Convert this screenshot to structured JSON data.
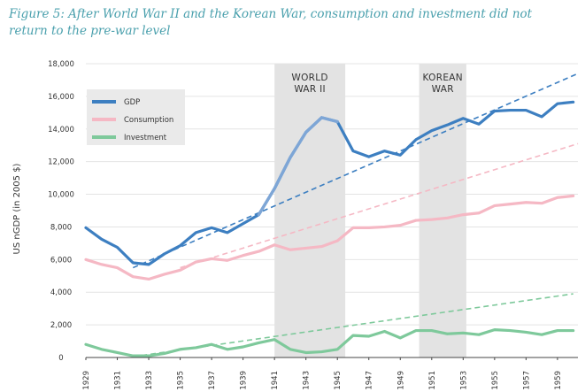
{
  "title": "Figure 5: After World War II and the Korean War, consumption and investment did not return to the pre-war level",
  "chart_data": {
    "type": "line",
    "ylabel": "US nGDP (in 2005 $)",
    "xlabel": "",
    "ylim": [
      0,
      18000
    ],
    "yticks": [
      0,
      2000,
      4000,
      6000,
      8000,
      10000,
      12000,
      14000,
      16000,
      18000
    ],
    "ytick_labels": [
      "0",
      "2,000",
      "4,000",
      "6,000",
      "8,000",
      "10,000",
      "12,000",
      "14,000",
      "16,000",
      "18,000"
    ],
    "xlim": [
      1929,
      1960.3
    ],
    "xtick_labels": [
      "1929",
      "1931",
      "1933",
      "1935",
      "1937",
      "1939",
      "1941",
      "1943",
      "1945",
      "1947",
      "1949",
      "1951",
      "1953",
      "1955",
      "1957",
      "1959"
    ],
    "x": [
      1929,
      1930,
      1931,
      1932,
      1933,
      1934,
      1935,
      1936,
      1937,
      1938,
      1939,
      1940,
      1941,
      1942,
      1943,
      1944,
      1945,
      1946,
      1947,
      1948,
      1949,
      1950,
      1951,
      1952,
      1953,
      1954,
      1955,
      1956,
      1957,
      1958,
      1959,
      1960
    ],
    "series": [
      {
        "name": "GDP",
        "color": "#3d7fc1",
        "war_color": "#7ea6d6",
        "values": [
          7950,
          7250,
          6750,
          5800,
          5700,
          6350,
          6850,
          7650,
          7950,
          7650,
          8200,
          8750,
          10350,
          12250,
          13800,
          14700,
          14450,
          12650,
          12300,
          12650,
          12400,
          13350,
          13900,
          14250,
          14650,
          14300,
          15100,
          15150,
          15150,
          14750,
          15550,
          15650
        ],
        "trend": {
          "from": [
            1932,
            5500
          ],
          "to": [
            1960.3,
            17400
          ]
        }
      },
      {
        "name": "Consumption",
        "color": "#f5b8c4",
        "war_color": "#f5b8c4",
        "values": [
          6000,
          5700,
          5500,
          4950,
          4800,
          5100,
          5350,
          5850,
          6050,
          5950,
          6250,
          6500,
          6900,
          6600,
          6700,
          6800,
          7150,
          7950,
          7950,
          8000,
          8100,
          8400,
          8450,
          8550,
          8750,
          8850,
          9300,
          9400,
          9500,
          9450,
          9800,
          9900
        ],
        "trend": {
          "from": [
            1935,
            5500
          ],
          "to": [
            1960.3,
            13100
          ]
        }
      },
      {
        "name": "Investment",
        "color": "#7ec99b",
        "war_color": "#7ec99b",
        "values": [
          800,
          500,
          300,
          100,
          100,
          250,
          500,
          600,
          800,
          500,
          650,
          900,
          1100,
          500,
          300,
          350,
          500,
          1350,
          1300,
          1600,
          1200,
          1650,
          1650,
          1450,
          1500,
          1400,
          1700,
          1650,
          1550,
          1400,
          1650,
          1650
        ],
        "trend": {
          "from": [
            1932,
            50
          ],
          "to": [
            1960,
            3900
          ]
        }
      }
    ],
    "bands": [
      {
        "label_lines": [
          "WORLD",
          "WAR II"
        ],
        "from": 1941,
        "to": 1945.5
      },
      {
        "label_lines": [
          "KOREAN",
          "WAR"
        ],
        "from": 1950.2,
        "to": 1953.2
      }
    ],
    "legend": [
      "GDP",
      "Consumption",
      "Investment"
    ],
    "legend_position": "top-left",
    "grid": "horizontal"
  }
}
